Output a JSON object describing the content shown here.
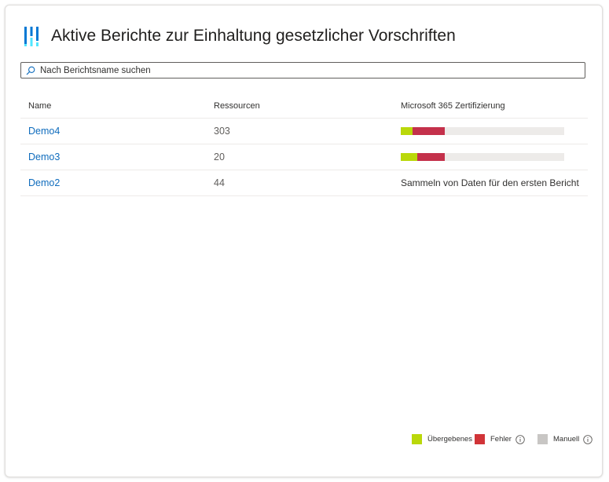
{
  "header": {
    "title": "Aktive Berichte zur Einhaltung gesetzlicher Vorschriften",
    "icon": "compliance-bars-icon"
  },
  "search": {
    "placeholder": "Nach Berichtsname suchen",
    "value": ""
  },
  "table": {
    "columns": {
      "name": "Name",
      "resources": "Ressourcen",
      "certification": "Microsoft 365 Zertifizierung"
    },
    "rows": [
      {
        "name": "Demo4",
        "resources": "303",
        "passed_fraction": 0.07,
        "failed_fraction": 0.2,
        "status": ""
      },
      {
        "name": "Demo3",
        "resources": "20",
        "passed_fraction": 0.1,
        "failed_fraction": 0.17,
        "status": ""
      },
      {
        "name": "Demo2",
        "resources": "44",
        "status": "Sammeln von Daten für den ersten Bericht"
      }
    ]
  },
  "legend": {
    "passed": "Übergebenes O",
    "failed": "Fehler",
    "manual": "Manuell"
  },
  "colors": {
    "passed": "#bad80a",
    "failed": "#c4314b",
    "failed_legend": "#d13438",
    "manual": "#c8c6c4",
    "track": "#edebe9",
    "link": "#0f6cbd"
  }
}
